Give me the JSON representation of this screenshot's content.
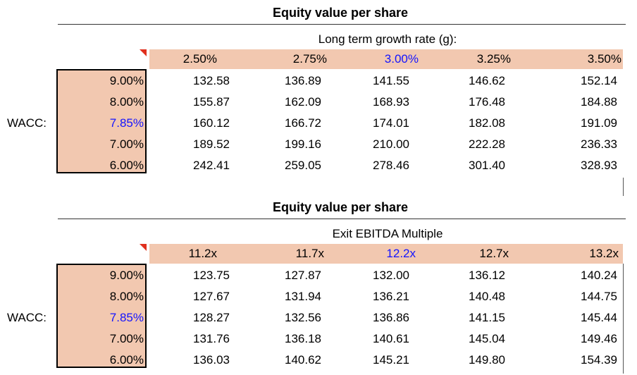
{
  "tables": [
    {
      "title": "Equity value per share",
      "subtitle": "Long term growth rate (g):",
      "row_axis_label": "WACC:",
      "columns": [
        "2.50%",
        "2.75%",
        "3.00%",
        "3.25%",
        "3.50%"
      ],
      "highlight_column": "3.00%",
      "rows": [
        {
          "label": "9.00%",
          "values": [
            "132.58",
            "136.89",
            "141.55",
            "146.62",
            "152.14"
          ]
        },
        {
          "label": "8.00%",
          "values": [
            "155.87",
            "162.09",
            "168.93",
            "176.48",
            "184.88"
          ]
        },
        {
          "label": "7.85%",
          "values": [
            "160.12",
            "166.72",
            "174.01",
            "182.08",
            "191.09"
          ]
        },
        {
          "label": "7.00%",
          "values": [
            "189.52",
            "199.16",
            "210.00",
            "222.28",
            "236.33"
          ]
        },
        {
          "label": "6.00%",
          "values": [
            "242.41",
            "259.05",
            "278.46",
            "301.40",
            "328.93"
          ]
        }
      ],
      "highlight_row": "7.85%"
    },
    {
      "title": "Equity value per share",
      "subtitle": "Exit EBITDA Multiple",
      "row_axis_label": "WACC:",
      "columns": [
        "11.2x",
        "11.7x",
        "12.2x",
        "12.7x",
        "13.2x"
      ],
      "highlight_column": "12.2x",
      "rows": [
        {
          "label": "9.00%",
          "values": [
            "123.75",
            "127.87",
            "132.00",
            "136.12",
            "140.24"
          ]
        },
        {
          "label": "8.00%",
          "values": [
            "127.67",
            "131.94",
            "136.21",
            "140.48",
            "144.75"
          ]
        },
        {
          "label": "7.85%",
          "values": [
            "128.27",
            "132.56",
            "136.86",
            "141.15",
            "145.44"
          ]
        },
        {
          "label": "7.00%",
          "values": [
            "131.76",
            "136.18",
            "140.61",
            "145.04",
            "149.46"
          ]
        },
        {
          "label": "6.00%",
          "values": [
            "136.03",
            "140.62",
            "145.21",
            "149.80",
            "154.39"
          ]
        }
      ],
      "highlight_row": "7.85%"
    }
  ],
  "colors": {
    "header_fill": "#f2c8b0",
    "highlight_text": "#1414ff",
    "flag": "#e0301e"
  }
}
